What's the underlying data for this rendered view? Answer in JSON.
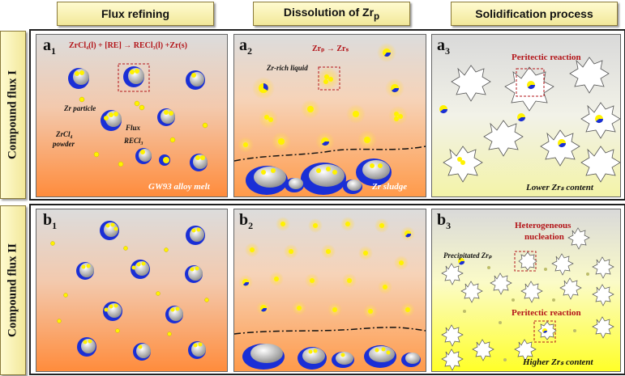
{
  "columns": [
    "Flux refining",
    "Dissolution of Zr",
    "Solidification process"
  ],
  "column_sub": "p",
  "rows": [
    "Compound flux I",
    "Compound flux II"
  ],
  "a1": {
    "label": "a",
    "sub": "1",
    "equation": "ZrCl₄(l) + [RE] → RECl₃(l) +Zr(s)",
    "zr_particle": "Zr particle",
    "flux": "Flux",
    "recl3": "RECl₃",
    "zrcl4_line1": "ZrCl₄",
    "zrcl4_line2": "powder",
    "footer": "GW93 alloy melt"
  },
  "a2": {
    "label": "a",
    "sub": "2",
    "reaction_main": "Zrₚ → Zrₛ",
    "zr_rich": "Zr-rich liquid",
    "footer": "Zr sludge"
  },
  "a3": {
    "label": "a",
    "sub": "3",
    "peritectic": "Peritectic reaction",
    "footer": "Lower Zrₛ content"
  },
  "b1": {
    "label": "b",
    "sub": "1"
  },
  "b2": {
    "label": "b",
    "sub": "2"
  },
  "b3": {
    "label": "b",
    "sub": "3",
    "hetero_line1": "Heterogeneous",
    "hetero_line2": "nucleation",
    "precipitated": "Precipitated Zrₚ",
    "peritectic": "Peritectic reaction",
    "footer": "Higher Zrₛ content"
  },
  "colors": {
    "particle_blue": "#1a2fd6",
    "particle_yellow": "#fff200",
    "reaction_red": "#b3151a",
    "melt_orange": "#ff8c3c"
  }
}
